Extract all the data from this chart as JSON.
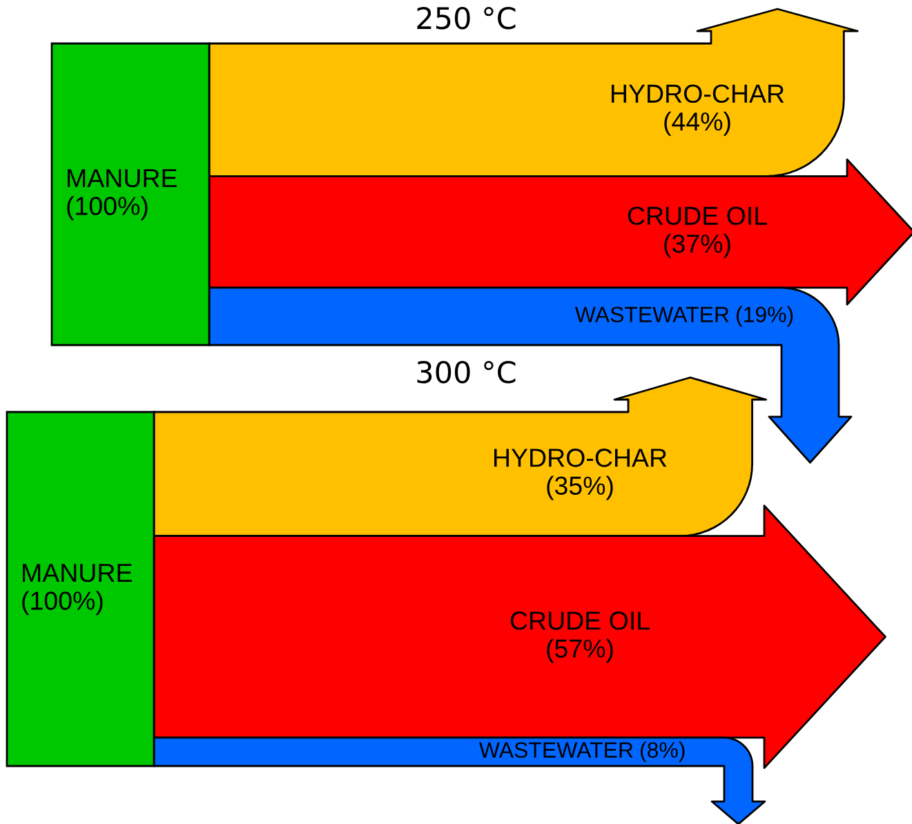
{
  "chart_data": [
    {
      "type": "other",
      "title": "250 °C",
      "categories": [
        "MANURE",
        "HYDRO-CHAR",
        "CRUDE OIL",
        "WASTEWATER"
      ],
      "values": [
        100,
        44,
        37,
        19
      ],
      "value_labels": [
        "(100%)",
        "(44%)",
        "(37%)",
        "(19%)"
      ],
      "colors": [
        "#00c800",
        "#ffc000",
        "#ff0000",
        "#0066ff"
      ]
    },
    {
      "type": "other",
      "title": "300 °C",
      "categories": [
        "MANURE",
        "HYDRO-CHAR",
        "CRUDE OIL",
        "WASTEWATER"
      ],
      "values": [
        100,
        35,
        57,
        8
      ],
      "value_labels": [
        "(100%)",
        "(35%)",
        "(57%)",
        "(8%)"
      ],
      "colors": [
        "#00c800",
        "#ffc000",
        "#ff0000",
        "#0066ff"
      ]
    }
  ]
}
